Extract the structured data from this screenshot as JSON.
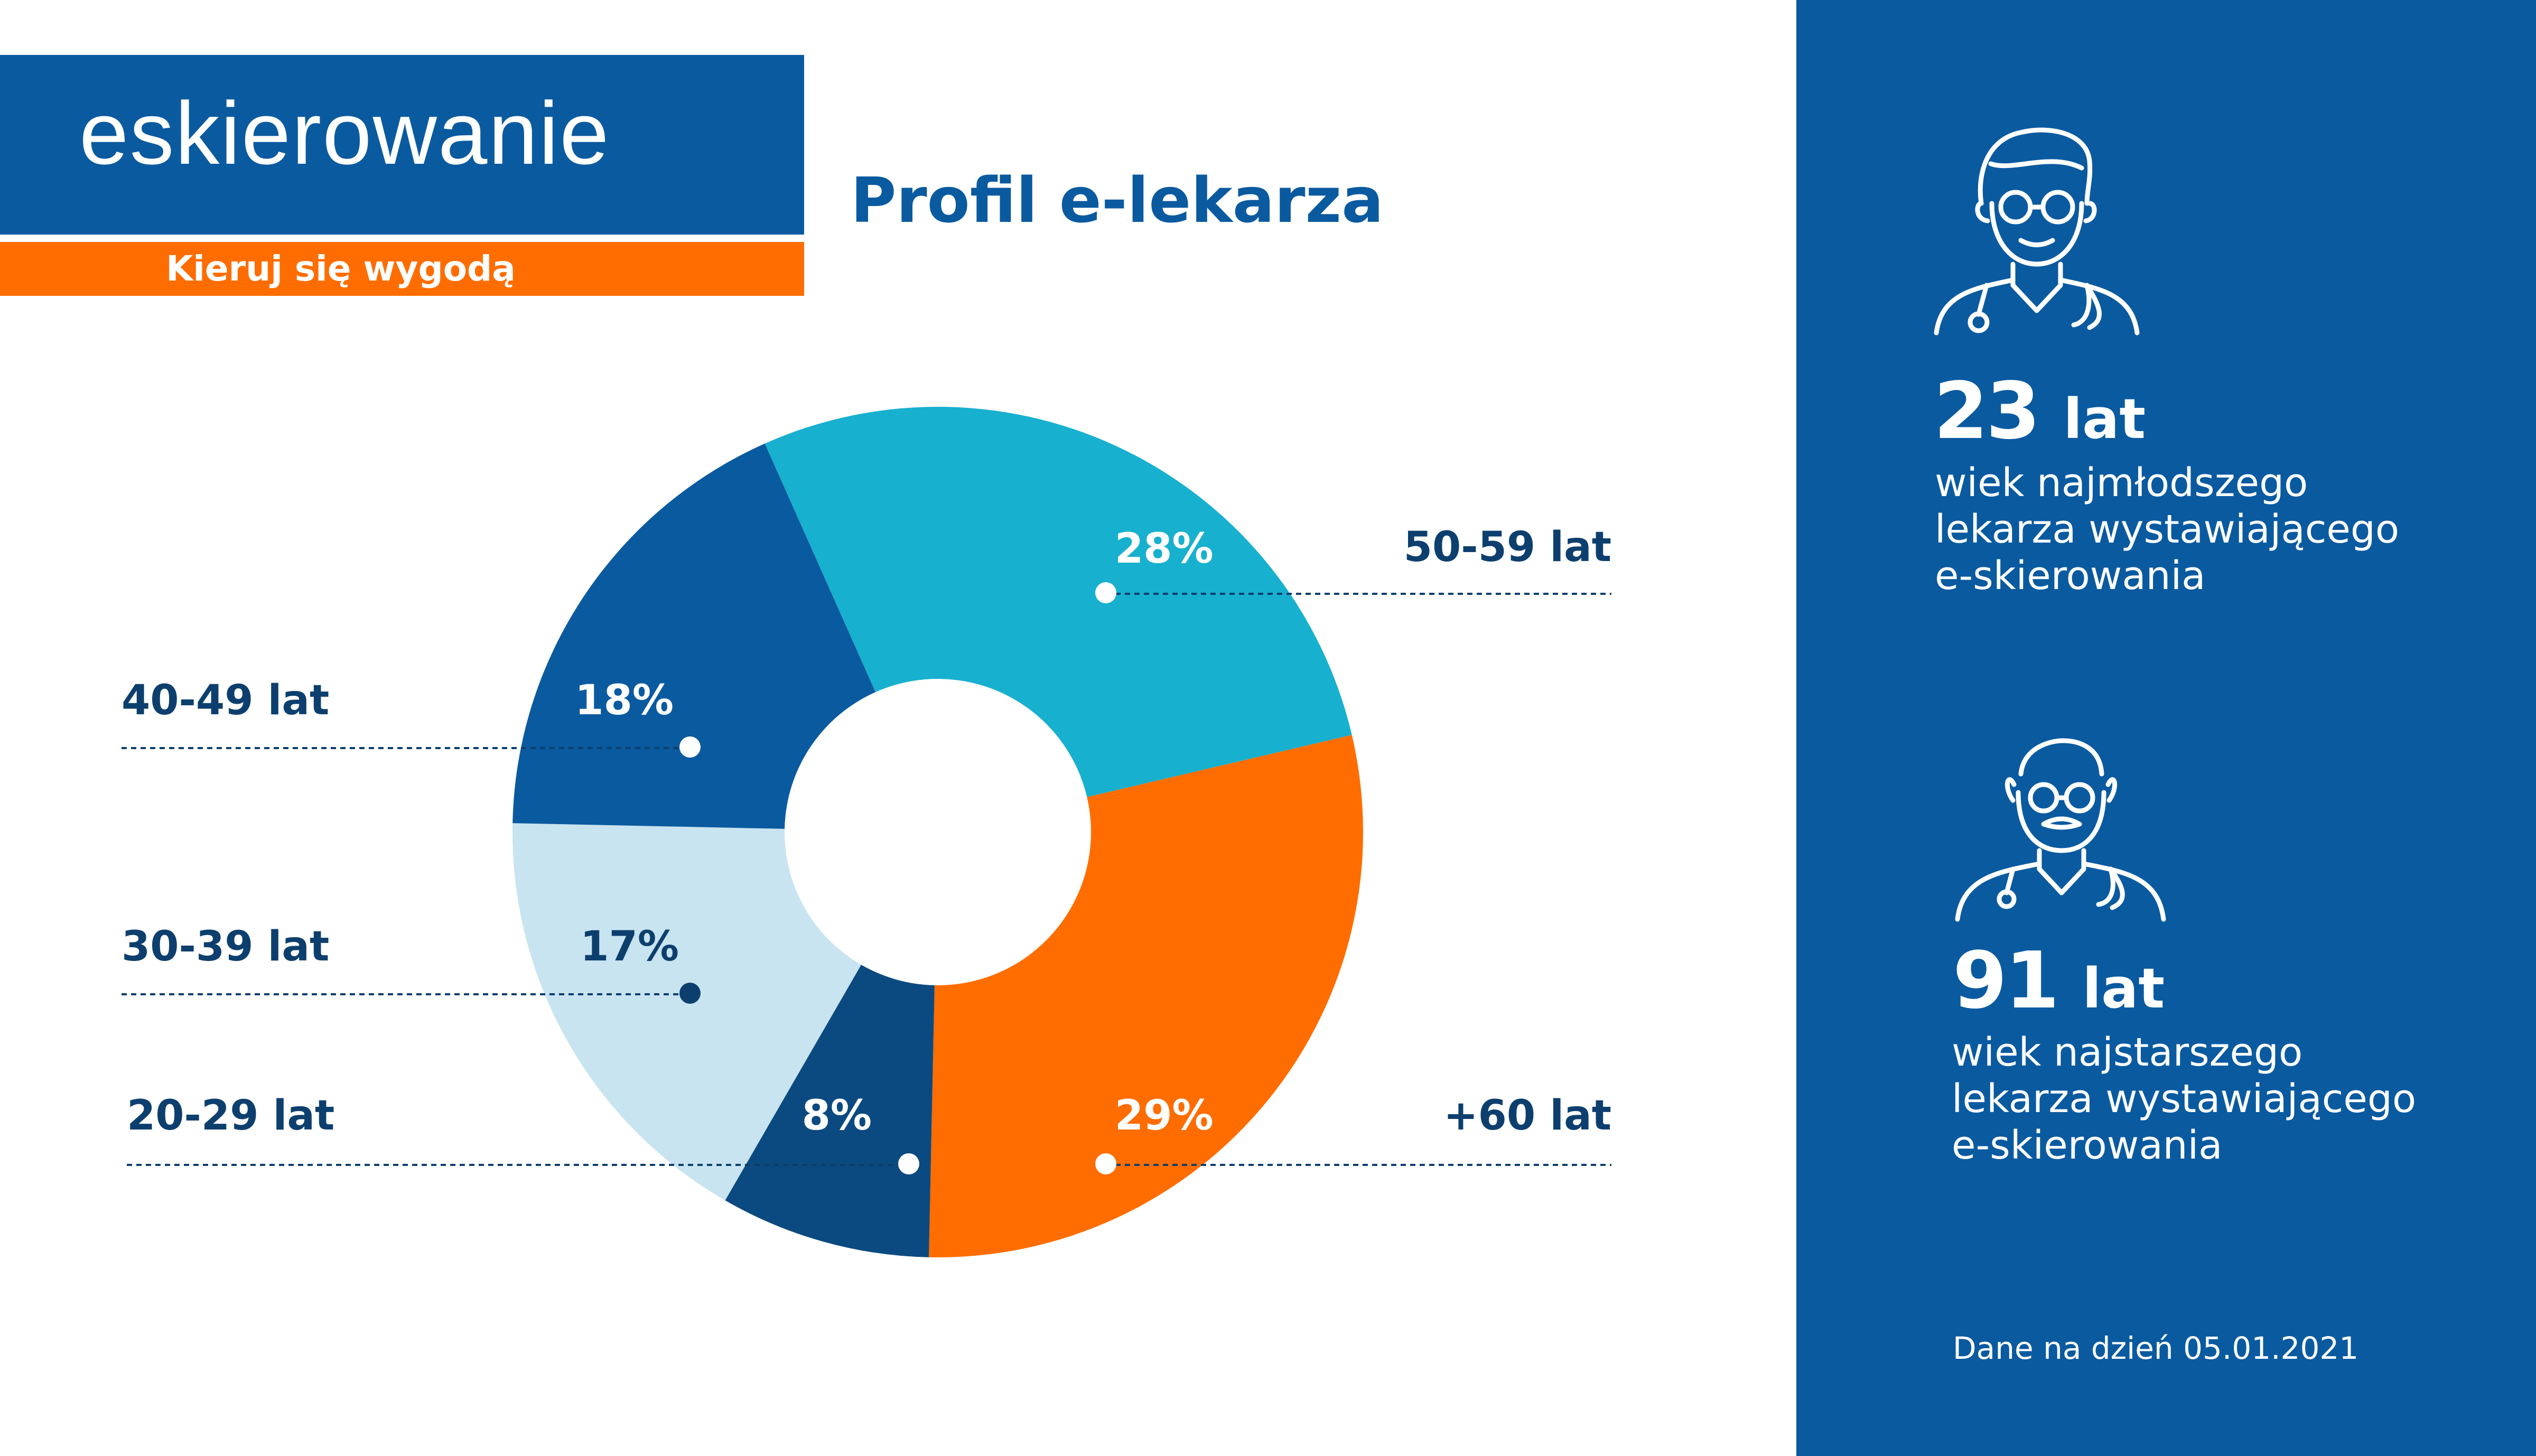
{
  "brand": {
    "logo": "eskierowanie",
    "tagline": "Kieruj się wygodą"
  },
  "title": "Profil e-lekarza",
  "colors": {
    "brand_blue": "#0a5aa0",
    "accent_orange": "#ff6d00",
    "label_navy": "#0d3f6e"
  },
  "chart_data": {
    "type": "pie",
    "donut": true,
    "categories": [
      "50-59 lat",
      "+60 lat",
      "20-29 lat",
      "30-39 lat",
      "40-49 lat"
    ],
    "values": [
      28,
      29,
      8,
      17,
      18
    ],
    "value_labels": [
      "28%",
      "29%",
      "8%",
      "17%",
      "18%"
    ],
    "colors": [
      "#18b0cf",
      "#ff6d00",
      "#0b4a80",
      "#c8e4f0",
      "#0a5aa0"
    ]
  },
  "stats": {
    "youngest": {
      "number": "23",
      "unit": "lat",
      "description": [
        "wiek najmłodszego",
        "lekarza wystawiającego",
        "e-skierowania"
      ],
      "icon": "young-doctor-icon"
    },
    "oldest": {
      "number": "91",
      "unit": "lat",
      "description": [
        "wiek najstarszego",
        "lekarza wystawiającego",
        "e-skierowania"
      ],
      "icon": "old-doctor-icon"
    }
  },
  "footnote": "Dane na dzień 05.01.2021"
}
